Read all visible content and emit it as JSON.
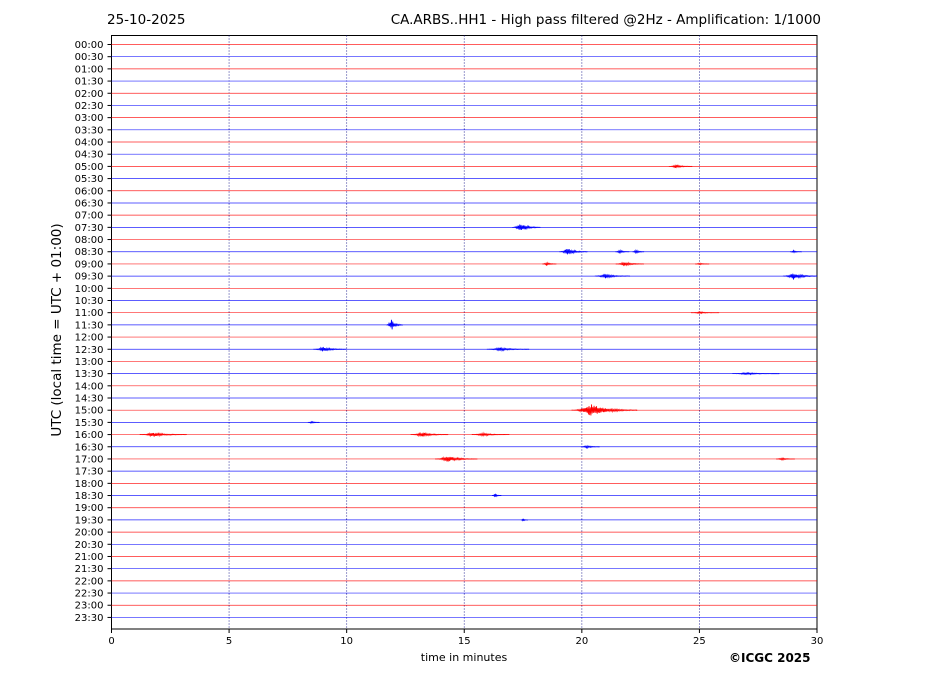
{
  "header": {
    "date": "25-10-2025",
    "title": "CA.ARBS..HH1 - High pass filtered @2Hz - Amplification: 1/1000"
  },
  "footer": {
    "copyright": "©ICGC 2025"
  },
  "colors": {
    "even_trace": "#ff0000",
    "odd_trace": "#0000ff",
    "grid": "#000080",
    "axis": "#000000"
  },
  "chart_data": {
    "type": "line",
    "title": "CA.ARBS..HH1 - High pass filtered @2Hz - Amplification: 1/1000",
    "xlabel": "time in minutes",
    "ylabel": "UTC (local time = UTC + 01:00)",
    "xlim": [
      0,
      30
    ],
    "x_ticks": [
      "0",
      "5",
      "10",
      "15",
      "20",
      "25",
      "30"
    ],
    "x_tick_values": [
      0,
      5,
      10,
      15,
      20,
      25,
      30
    ],
    "vertical_grid": "dotted at 5, 10, 15, 20, 25",
    "row_labels": [
      "00:00",
      "00:30",
      "01:00",
      "01:30",
      "02:00",
      "02:30",
      "03:00",
      "03:30",
      "04:00",
      "04:30",
      "05:00",
      "05:30",
      "06:00",
      "06:30",
      "07:00",
      "07:30",
      "08:00",
      "08:30",
      "09:00",
      "09:30",
      "10:00",
      "10:30",
      "11:00",
      "11:30",
      "12:00",
      "12:30",
      "13:00",
      "13:30",
      "14:00",
      "14:30",
      "15:00",
      "15:30",
      "16:00",
      "16:30",
      "17:00",
      "17:30",
      "18:00",
      "18:30",
      "19:00",
      "19:30",
      "20:00",
      "20:30",
      "21:00",
      "21:30",
      "22:00",
      "22:30",
      "23:00",
      "23:30"
    ],
    "trace_colors": "alternating red (even rows) / blue (odd rows)",
    "events": [
      {
        "row": "05:00",
        "t": 24.0,
        "amp": 0.15,
        "dur": 1.0
      },
      {
        "row": "07:30",
        "t": 17.4,
        "amp": 0.35,
        "dur": 1.2
      },
      {
        "row": "08:30",
        "t": 19.4,
        "amp": 0.3,
        "dur": 1.2
      },
      {
        "row": "08:30",
        "t": 21.6,
        "amp": 0.15,
        "dur": 0.6
      },
      {
        "row": "08:30",
        "t": 22.3,
        "amp": 0.15,
        "dur": 0.5
      },
      {
        "row": "08:30",
        "t": 29.0,
        "amp": 0.1,
        "dur": 0.5
      },
      {
        "row": "09:00",
        "t": 18.5,
        "amp": 0.15,
        "dur": 0.6
      },
      {
        "row": "09:00",
        "t": 21.8,
        "amp": 0.2,
        "dur": 1.2
      },
      {
        "row": "09:00",
        "t": 25.0,
        "amp": 0.08,
        "dur": 0.6
      },
      {
        "row": "09:30",
        "t": 21.0,
        "amp": 0.2,
        "dur": 1.5
      },
      {
        "row": "09:30",
        "t": 29.0,
        "amp": 0.3,
        "dur": 1.5
      },
      {
        "row": "11:00",
        "t": 25.0,
        "amp": 0.08,
        "dur": 1.2
      },
      {
        "row": "11:30",
        "t": 11.9,
        "amp": 0.5,
        "dur": 0.7
      },
      {
        "row": "12:30",
        "t": 9.0,
        "amp": 0.2,
        "dur": 1.4
      },
      {
        "row": "12:30",
        "t": 16.5,
        "amp": 0.15,
        "dur": 1.8
      },
      {
        "row": "13:30",
        "t": 27.0,
        "amp": 0.1,
        "dur": 2.0
      },
      {
        "row": "15:00",
        "t": 20.4,
        "amp": 0.5,
        "dur": 2.8
      },
      {
        "row": "15:30",
        "t": 8.5,
        "amp": 0.1,
        "dur": 0.5
      },
      {
        "row": "16:00",
        "t": 1.8,
        "amp": 0.18,
        "dur": 2.0
      },
      {
        "row": "16:00",
        "t": 13.2,
        "amp": 0.2,
        "dur": 1.6
      },
      {
        "row": "16:00",
        "t": 15.8,
        "amp": 0.13,
        "dur": 1.6
      },
      {
        "row": "16:30",
        "t": 20.2,
        "amp": 0.14,
        "dur": 0.8
      },
      {
        "row": "17:00",
        "t": 14.3,
        "amp": 0.25,
        "dur": 1.8
      },
      {
        "row": "17:00",
        "t": 28.5,
        "amp": 0.12,
        "dur": 0.8
      },
      {
        "row": "18:30",
        "t": 16.3,
        "amp": 0.12,
        "dur": 0.4
      },
      {
        "row": "19:30",
        "t": 17.5,
        "amp": 0.08,
        "dur": 0.3
      }
    ]
  }
}
